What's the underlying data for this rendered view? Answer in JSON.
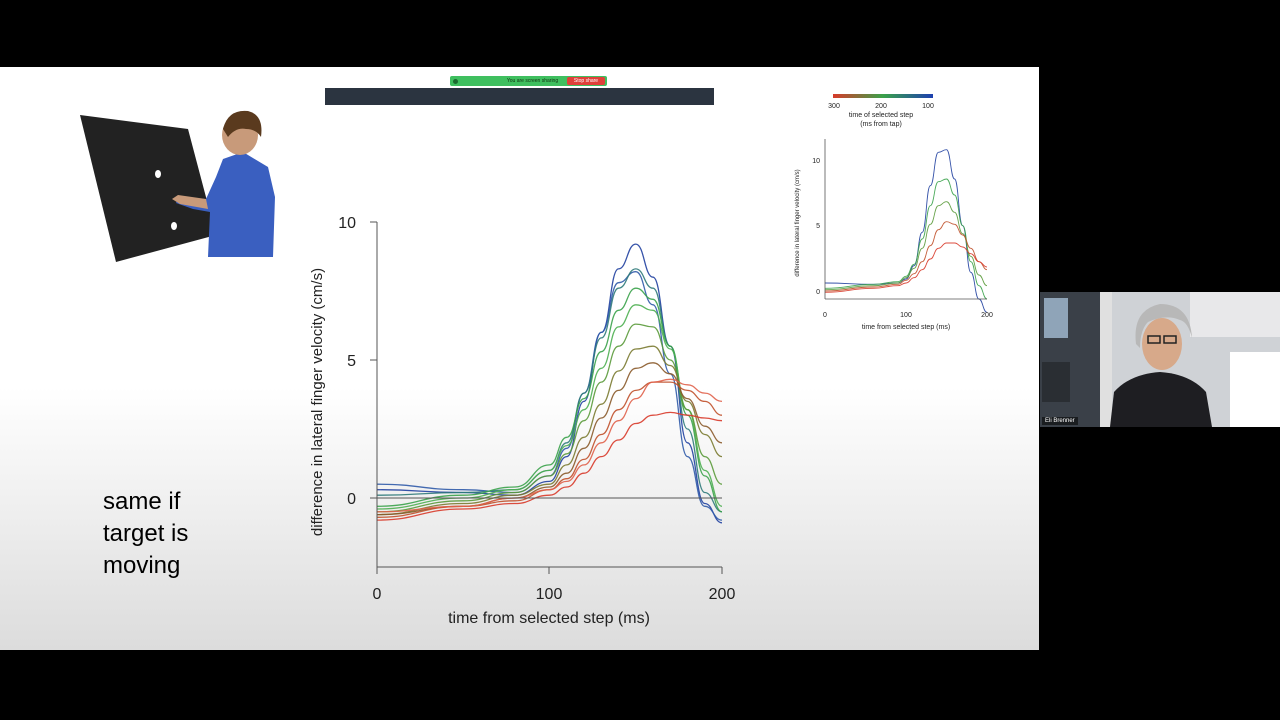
{
  "screen_share": {
    "status_text": "You are screen sharing",
    "stop_label": "Stop share"
  },
  "slide": {
    "caption": [
      "same if",
      "target is",
      "moving"
    ]
  },
  "main_chart": {
    "y_ticks": [
      "0",
      "5",
      "10"
    ],
    "x_ticks": [
      "0",
      "100",
      "200"
    ]
  },
  "inset_chart": {
    "y_ticks": [
      "0",
      "5",
      "10"
    ],
    "x_ticks": [
      "0",
      "100",
      "200"
    ]
  },
  "colorbar": {
    "ticks": [
      "300",
      "200",
      "100"
    ],
    "label_line1": "time of selected step",
    "label_line2": "(ms from tap)",
    "colors": [
      "#d83a2a",
      "#3aa24a",
      "#1d3fb0"
    ]
  },
  "chart_data": [
    {
      "type": "line",
      "title": "",
      "xlabel": "time from selected step (ms)",
      "ylabel": "difference in lateral finger velocity (cm/s)",
      "xlim": [
        0,
        200
      ],
      "ylim": [
        -2.5,
        10
      ],
      "series": [
        {
          "color": "#2040a0",
          "x": [
            0,
            50,
            80,
            100,
            110,
            120,
            130,
            140,
            150,
            160,
            170,
            180,
            190,
            200
          ],
          "y": [
            0.3,
            0.2,
            0.1,
            0.6,
            1.5,
            3.5,
            6.0,
            8.3,
            9.2,
            8.0,
            5.5,
            2.0,
            -0.2,
            -0.9
          ]
        },
        {
          "color": "#2f5aa8",
          "x": [
            0,
            50,
            80,
            100,
            110,
            120,
            130,
            140,
            150,
            160,
            170,
            180,
            190,
            200
          ],
          "y": [
            0.5,
            0.3,
            0.2,
            0.8,
            1.8,
            3.8,
            6.0,
            7.8,
            8.2,
            7.0,
            4.5,
            1.5,
            -0.3,
            -0.8
          ]
        },
        {
          "color": "#2f7a7a",
          "x": [
            0,
            50,
            80,
            100,
            110,
            120,
            130,
            140,
            150,
            160,
            170,
            180,
            190,
            200
          ],
          "y": [
            0.1,
            0.2,
            0.3,
            1.0,
            2.0,
            3.8,
            5.8,
            7.6,
            8.3,
            7.6,
            5.5,
            2.5,
            0.2,
            -0.5
          ]
        },
        {
          "color": "#3aa24a",
          "x": [
            0,
            50,
            80,
            100,
            110,
            120,
            130,
            140,
            150,
            160,
            170,
            180,
            190,
            200
          ],
          "y": [
            -0.3,
            0.1,
            0.4,
            1.2,
            2.2,
            3.6,
            5.3,
            6.8,
            7.6,
            7.2,
            5.5,
            3.0,
            0.8,
            -0.5
          ]
        },
        {
          "color": "#4caf50",
          "x": [
            0,
            50,
            80,
            100,
            110,
            120,
            130,
            140,
            150,
            160,
            170,
            180,
            190,
            200
          ],
          "y": [
            -0.4,
            0.0,
            0.3,
            1.0,
            1.9,
            3.2,
            4.7,
            6.2,
            7.0,
            6.8,
            5.4,
            3.2,
            1.0,
            -0.3
          ]
        },
        {
          "color": "#5a9a3a",
          "x": [
            0,
            50,
            80,
            100,
            110,
            120,
            130,
            140,
            150,
            160,
            170,
            180,
            190,
            200
          ],
          "y": [
            -0.5,
            -0.1,
            0.2,
            0.8,
            1.6,
            2.8,
            4.2,
            5.5,
            6.3,
            6.2,
            5.0,
            3.2,
            1.5,
            0.5
          ]
        },
        {
          "color": "#7a7a30",
          "x": [
            0,
            50,
            80,
            100,
            110,
            120,
            130,
            140,
            150,
            160,
            170,
            180,
            190,
            200
          ],
          "y": [
            -0.6,
            -0.2,
            0.1,
            0.5,
            1.2,
            2.2,
            3.4,
            4.6,
            5.4,
            5.5,
            4.8,
            3.5,
            2.3,
            1.5
          ]
        },
        {
          "color": "#8a5a2a",
          "x": [
            0,
            50,
            80,
            100,
            110,
            120,
            130,
            140,
            150,
            160,
            170,
            180,
            190,
            200
          ],
          "y": [
            -0.6,
            -0.3,
            0.0,
            0.4,
            0.9,
            1.8,
            2.9,
            3.9,
            4.7,
            4.9,
            4.5,
            3.6,
            2.6,
            2.0
          ]
        },
        {
          "color": "#c0502a",
          "x": [
            0,
            50,
            80,
            100,
            110,
            120,
            130,
            140,
            150,
            160,
            170,
            180,
            190,
            200
          ],
          "y": [
            -0.7,
            -0.3,
            -0.1,
            0.3,
            0.7,
            1.4,
            2.3,
            3.2,
            3.9,
            4.2,
            4.2,
            3.9,
            3.5,
            3.0
          ]
        },
        {
          "color": "#d83a2a",
          "x": [
            0,
            50,
            80,
            100,
            110,
            120,
            130,
            140,
            150,
            160,
            170,
            180,
            190,
            200
          ],
          "y": [
            -0.8,
            -0.4,
            -0.2,
            0.1,
            0.4,
            0.9,
            1.5,
            2.1,
            2.7,
            3.0,
            3.1,
            3.0,
            2.9,
            2.8
          ]
        },
        {
          "color": "#e0604a",
          "x": [
            0,
            50,
            80,
            100,
            110,
            120,
            130,
            140,
            150,
            160,
            170,
            180,
            190,
            200
          ],
          "y": [
            -0.5,
            -0.3,
            0.0,
            0.3,
            0.6,
            1.2,
            2.0,
            2.8,
            3.6,
            4.2,
            4.3,
            4.1,
            3.8,
            3.5
          ]
        }
      ]
    },
    {
      "type": "line",
      "title": "",
      "xlabel": "time from selected step (ms)",
      "ylabel": "difference in lateral finger velocity (cm/s)",
      "xlim": [
        0,
        200
      ],
      "ylim": [
        -1,
        11
      ],
      "series": [
        {
          "color": "#2040a0",
          "x": [
            0,
            60,
            90,
            100,
            110,
            120,
            130,
            140,
            150,
            160,
            170,
            180,
            190,
            200
          ],
          "y": [
            0.2,
            0.1,
            0.2,
            0.5,
            1.5,
            4.0,
            7.5,
            10.0,
            10.2,
            8.0,
            4.5,
            1.0,
            -1.0,
            -2.0
          ]
        },
        {
          "color": "#3aa24a",
          "x": [
            0,
            60,
            90,
            100,
            110,
            120,
            130,
            140,
            150,
            160,
            170,
            180,
            190,
            200
          ],
          "y": [
            -0.2,
            0.1,
            0.3,
            0.7,
            1.6,
            3.5,
            6.0,
            7.8,
            8.0,
            6.8,
            4.5,
            1.8,
            0.0,
            -1.0
          ]
        },
        {
          "color": "#5a9a3a",
          "x": [
            0,
            60,
            90,
            100,
            110,
            120,
            130,
            140,
            150,
            160,
            170,
            180,
            190,
            200
          ],
          "y": [
            -0.3,
            0.0,
            0.2,
            0.6,
            1.3,
            2.8,
            4.6,
            6.0,
            6.3,
            5.5,
            3.9,
            2.2,
            0.8,
            0.0
          ]
        },
        {
          "color": "#c0502a",
          "x": [
            0,
            60,
            90,
            100,
            110,
            120,
            130,
            140,
            150,
            160,
            170,
            180,
            190,
            200
          ],
          "y": [
            -0.4,
            -0.1,
            0.1,
            0.4,
            0.9,
            1.8,
            3.0,
            4.2,
            4.8,
            4.6,
            3.8,
            2.8,
            1.8,
            1.2
          ]
        },
        {
          "color": "#d83a2a",
          "x": [
            0,
            60,
            90,
            100,
            110,
            120,
            130,
            140,
            150,
            160,
            170,
            180,
            190,
            200
          ],
          "y": [
            -0.5,
            -0.2,
            0.0,
            0.2,
            0.6,
            1.2,
            2.0,
            2.8,
            3.2,
            3.2,
            2.9,
            2.4,
            1.8,
            1.4
          ]
        }
      ]
    }
  ],
  "webcam": {
    "participant_name": "Eli Brenner"
  }
}
